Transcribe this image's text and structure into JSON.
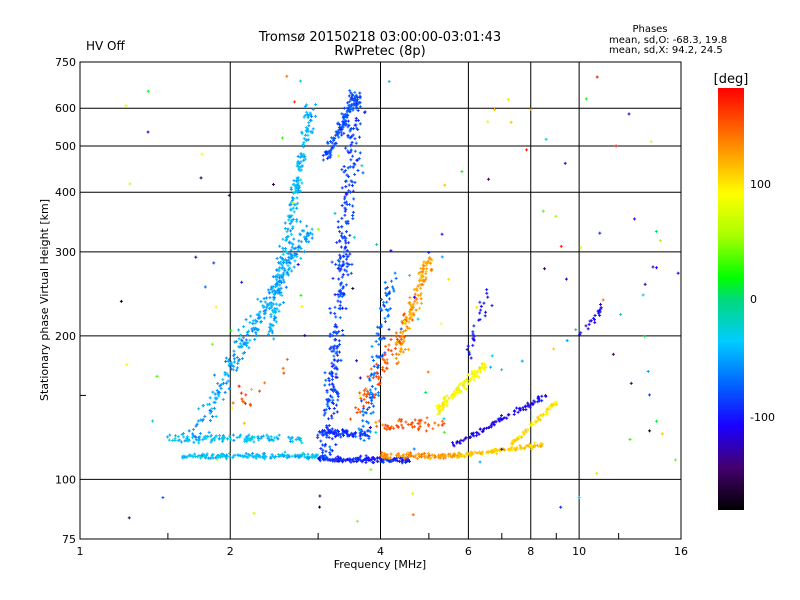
{
  "chart_data": {
    "type": "scatter",
    "title": "Tromsø 20150218 03:00:00-03:01:43",
    "subtitle": "RwPretec (8p)",
    "status": "HV Off",
    "status_color": "#cc0000",
    "stats": {
      "heading": "Phases",
      "line_o": "mean, sd,O: -68.3, 19.8",
      "line_x": "mean, sd,X:  94.2, 24.5"
    },
    "xlabel": "Frequency [MHz]",
    "ylabel": "Stationary phase Virtual Height [km]",
    "xscale": "log",
    "yscale": "log",
    "xlim": [
      1,
      16
    ],
    "ylim": [
      75,
      750
    ],
    "x_ticks": [
      1,
      2,
      4,
      6,
      8,
      10,
      16
    ],
    "y_ticks": [
      75,
      100,
      200,
      300,
      400,
      500,
      600,
      750
    ],
    "x_ticks_minor": [
      1.5,
      3,
      5,
      7,
      9,
      12
    ],
    "y_ticks_minor": [
      150
    ],
    "grid": true,
    "colorbar": {
      "label": "[deg]",
      "range": [
        -180,
        180
      ],
      "ticks": [
        100,
        0,
        -100
      ]
    },
    "traces": [
      {
        "name": "",
        "x": [
          1.6,
          3.0
        ],
        "y": [
          112,
          112
        ],
        "phase": -40,
        "n": 160,
        "spread": 0.02
      },
      {
        "name": "",
        "x": [
          3.0,
          4.6
        ],
        "y": [
          110,
          110
        ],
        "phase": -95,
        "n": 150,
        "spread": 0.02
      },
      {
        "name": "",
        "x": [
          4.0,
          5.8
        ],
        "y": [
          112,
          112
        ],
        "phase": 130,
        "n": 100,
        "spread": 0.02
      },
      {
        "name": "",
        "x": [
          5.7,
          8.4
        ],
        "y": [
          112,
          118
        ],
        "phase": 110,
        "n": 110,
        "spread": 0.02
      },
      {
        "name": "",
        "x": [
          1.5,
          2.8
        ],
        "y": [
          122,
          122
        ],
        "phase": -40,
        "n": 120,
        "spread": 0.03
      },
      {
        "name": "",
        "x": [
          3.0,
          3.8
        ],
        "y": [
          125,
          125
        ],
        "phase": -90,
        "n": 80,
        "spread": 0.03
      },
      {
        "name": "",
        "x": [
          3.9,
          5.4
        ],
        "y": [
          130,
          130
        ],
        "phase": 150,
        "n": 50,
        "spread": 0.05
      },
      {
        "name": "",
        "x": [
          5.6,
          8.6
        ],
        "y": [
          118,
          150
        ],
        "phase": -110,
        "n": 90,
        "spread": 0.02
      },
      {
        "name": "",
        "x": [
          7.3,
          9.0
        ],
        "y": [
          118,
          145
        ],
        "phase": 100,
        "n": 60,
        "spread": 0.02
      },
      {
        "name": "",
        "x": [
          5.2,
          6.5
        ],
        "y": [
          140,
          175
        ],
        "phase": 90,
        "n": 110,
        "spread": 0.04
      },
      {
        "name": "",
        "x": [
          1.7,
          2.9
        ],
        "y": [
          125,
          340
        ],
        "phase": -50,
        "n": 260,
        "spread": 0.09
      },
      {
        "name": "",
        "x": [
          2.4,
          2.9
        ],
        "y": [
          200,
          600
        ],
        "phase": -45,
        "n": 240,
        "spread": 0.06
      },
      {
        "name": "",
        "x": [
          3.1,
          3.6
        ],
        "y": [
          110,
          650
        ],
        "phase": -85,
        "n": 340,
        "spread": 0.09
      },
      {
        "name": "",
        "x": [
          3.1,
          3.6
        ],
        "y": [
          470,
          640
        ],
        "phase": -80,
        "n": 130,
        "spread": 0.05
      },
      {
        "name": "",
        "x": [
          3.7,
          4.2
        ],
        "y": [
          120,
          260
        ],
        "phase": -70,
        "n": 110,
        "spread": 0.09
      },
      {
        "name": "",
        "x": [
          4.3,
          5.0
        ],
        "y": [
          180,
          290
        ],
        "phase": 125,
        "n": 130,
        "spread": 0.06
      },
      {
        "name": "",
        "x": [
          3.6,
          4.6
        ],
        "y": [
          140,
          220
        ],
        "phase": 150,
        "n": 70,
        "spread": 0.08
      },
      {
        "name": "",
        "x": [
          2.0,
          2.6
        ],
        "y": [
          140,
          180
        ],
        "phase": 160,
        "n": 15,
        "spread": 0.1
      },
      {
        "name": "",
        "x": [
          6.0,
          6.6
        ],
        "y": [
          180,
          250
        ],
        "phase": -100,
        "n": 25,
        "spread": 0.06
      },
      {
        "name": "",
        "x": [
          10.0,
          11.2
        ],
        "y": [
          200,
          230
        ],
        "phase": -110,
        "n": 20,
        "spread": 0.03
      },
      {
        "name": "",
        "x": [
          1.2,
          16.0
        ],
        "y": [
          80,
          700
        ],
        "phase": 0,
        "n": 130,
        "spread": 0,
        "random": true
      }
    ]
  }
}
